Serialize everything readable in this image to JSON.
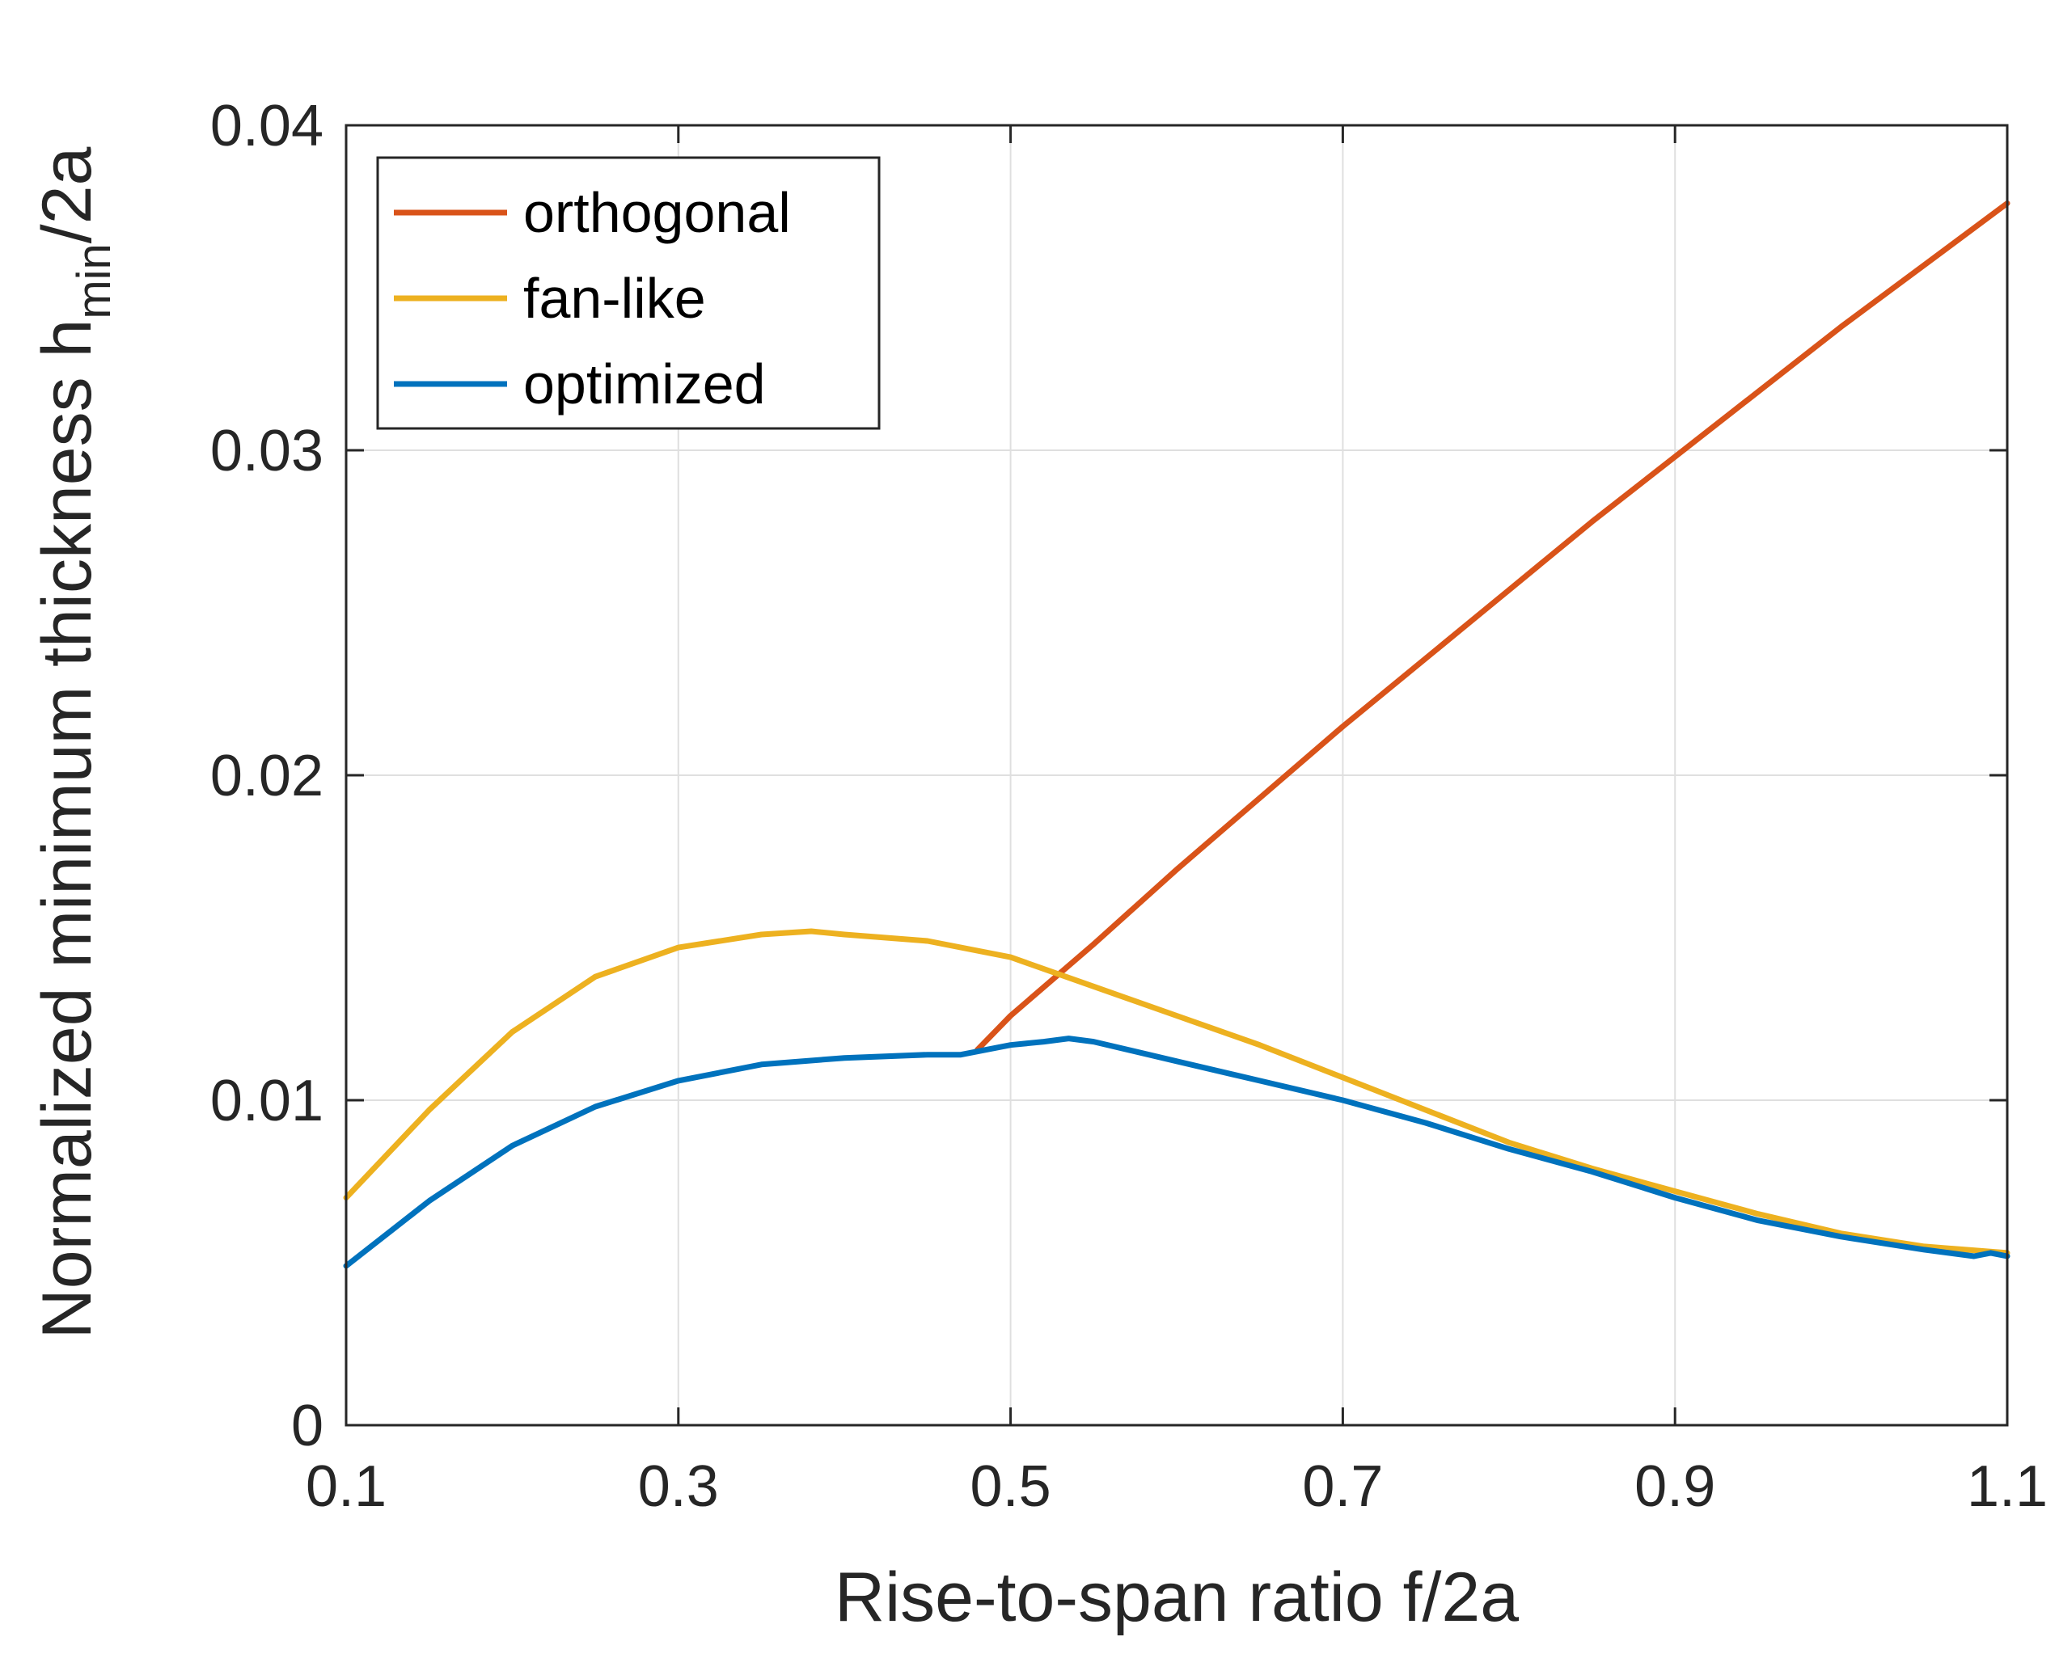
{
  "chart_data": {
    "type": "line",
    "title": "",
    "xlabel": "Rise-to-span ratio f/2a",
    "ylabel": {
      "main": "Normalized minimum thickness h",
      "subscript": "min",
      "suffix": "/2a"
    },
    "xlim": [
      0.1,
      1.1
    ],
    "ylim": [
      0,
      0.04
    ],
    "x_ticks": [
      0.1,
      0.3,
      0.5,
      0.7,
      0.9,
      1.1
    ],
    "x_tick_labels": [
      "0.1",
      "0.3",
      "0.5",
      "0.7",
      "0.9",
      "1.1"
    ],
    "y_ticks": [
      0,
      0.01,
      0.02,
      0.03,
      0.04
    ],
    "y_tick_labels": [
      "0",
      "0.01",
      "0.02",
      "0.03",
      "0.04"
    ],
    "grid": true,
    "legend_position": "top-left",
    "series": [
      {
        "name": "orthogonal",
        "color": "#D95319",
        "x": [
          0.48,
          0.5,
          0.55,
          0.6,
          0.65,
          0.7,
          0.75,
          0.8,
          0.85,
          0.9,
          0.95,
          1.0,
          1.05,
          1.1
        ],
        "y": [
          0.01155,
          0.0126,
          0.0148,
          0.0171,
          0.0193,
          0.0215,
          0.0236,
          0.0257,
          0.0278,
          0.0298,
          0.0318,
          0.0338,
          0.0357,
          0.0376
        ]
      },
      {
        "name": "fan-like",
        "color": "#EDB120",
        "x": [
          0.1,
          0.15,
          0.2,
          0.25,
          0.3,
          0.35,
          0.38,
          0.4,
          0.45,
          0.5,
          0.55,
          0.6,
          0.65,
          0.7,
          0.75,
          0.8,
          0.85,
          0.9,
          0.95,
          1.0,
          1.05,
          1.1
        ],
        "y": [
          0.007,
          0.0097,
          0.0121,
          0.0138,
          0.0147,
          0.0151,
          0.0152,
          0.0151,
          0.0149,
          0.0144,
          0.0135,
          0.0126,
          0.0117,
          0.0107,
          0.0097,
          0.0087,
          0.0079,
          0.0072,
          0.0065,
          0.0059,
          0.0055,
          0.0053
        ]
      },
      {
        "name": "optimized",
        "color": "#0072BD",
        "x": [
          0.1,
          0.15,
          0.2,
          0.25,
          0.3,
          0.35,
          0.4,
          0.45,
          0.47,
          0.48,
          0.5,
          0.52,
          0.535,
          0.55,
          0.6,
          0.65,
          0.7,
          0.75,
          0.8,
          0.85,
          0.9,
          0.95,
          1.0,
          1.05,
          1.08,
          1.09,
          1.1
        ],
        "y": [
          0.0049,
          0.0069,
          0.0086,
          0.0098,
          0.0106,
          0.0111,
          0.0113,
          0.0114,
          0.0114,
          0.0115,
          0.0117,
          0.0118,
          0.0119,
          0.0118,
          0.0112,
          0.0106,
          0.01,
          0.0093,
          0.0085,
          0.0078,
          0.007,
          0.0063,
          0.0058,
          0.0054,
          0.0052,
          0.0053,
          0.0052
        ]
      }
    ]
  }
}
